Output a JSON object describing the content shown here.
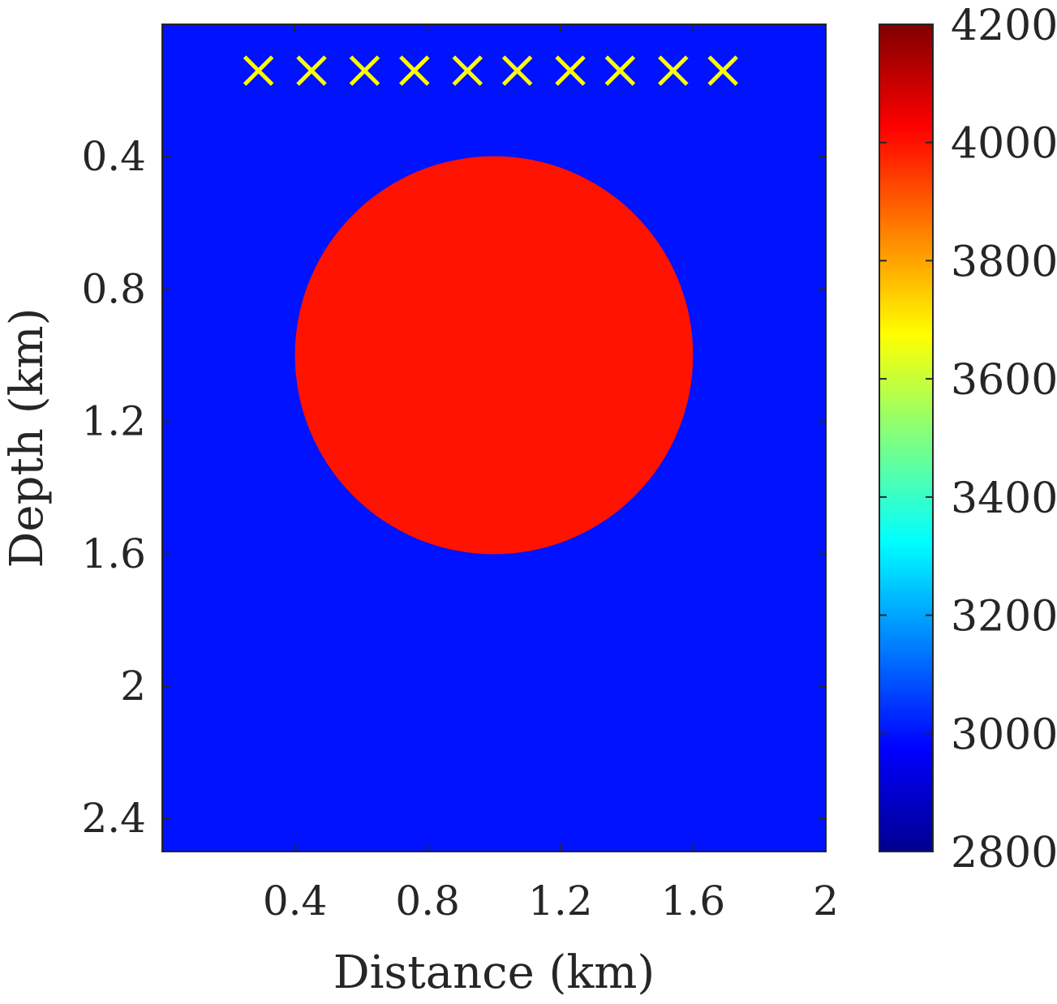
{
  "chart_data": {
    "type": "heatmap",
    "xlabel": "Distance (km)",
    "ylabel": "Depth (km)",
    "xlim": [
      0.0,
      2.0
    ],
    "ylim": [
      2.5,
      0.0
    ],
    "y_reversed": true,
    "xticks": [
      0.4,
      0.8,
      1.2,
      1.6,
      2.0
    ],
    "xtick_labels": [
      "0.4",
      "0.8",
      "1.2",
      "1.6",
      "2"
    ],
    "yticks": [
      0.4,
      0.8,
      1.2,
      1.6,
      2.0,
      2.4
    ],
    "ytick_labels": [
      "0.4",
      "0.8",
      "1.2",
      "1.6",
      "2",
      "2.4"
    ],
    "background_value": 3000,
    "anomaly": {
      "shape": "circle",
      "center_x": 1.0,
      "center_z": 1.0,
      "radius": 0.6,
      "value": 4000
    },
    "sources": {
      "marker": "x",
      "color": "#ffff00",
      "x": [
        0.29,
        0.45,
        0.61,
        0.76,
        0.92,
        1.07,
        1.23,
        1.38,
        1.54,
        1.69
      ],
      "z": [
        0.14,
        0.14,
        0.14,
        0.14,
        0.14,
        0.14,
        0.14,
        0.14,
        0.14,
        0.14
      ]
    },
    "colorbar": {
      "colormap": "jet",
      "range": [
        2800,
        4200
      ],
      "ticks": [
        2800,
        3000,
        3200,
        3400,
        3600,
        3800,
        4000,
        4200
      ],
      "tick_labels": [
        "2800",
        "3000",
        "3200",
        "3400",
        "3600",
        "3800",
        "4000",
        "4200"
      ]
    },
    "grid": false
  }
}
